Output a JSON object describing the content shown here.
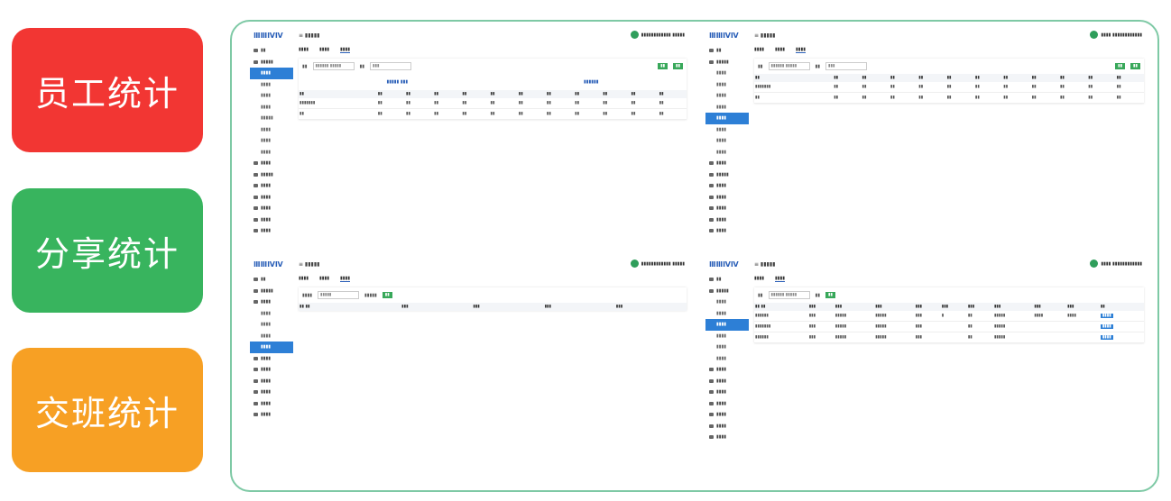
{
  "labels": [
    "员工统计",
    "分享统计",
    "交班统计"
  ],
  "colors": {
    "red": "#f23633",
    "green": "#38b45e",
    "orange": "#f7a024",
    "frame": "#7ec9a5",
    "accent": "#2d7fd6"
  },
  "screens": [
    {
      "logo": "ⅢⅢⅣⅣ",
      "crumb": "≡ ▮▮▮▮▮",
      "user": "▮▮▮▮▮▮▮▮▮▮▮▮ ▮▮▮▮▮",
      "sidebar": [
        {
          "label": "▮▮",
          "sub": false,
          "active": false
        },
        {
          "label": "▮▮▮▮▮",
          "sub": false,
          "active": false
        },
        {
          "label": "▮▮▮▮",
          "sub": true,
          "active": true
        },
        {
          "label": "▮▮▮▮",
          "sub": true,
          "active": false
        },
        {
          "label": "▮▮▮▮",
          "sub": true,
          "active": false
        },
        {
          "label": "▮▮▮▮",
          "sub": true,
          "active": false
        },
        {
          "label": "▮▮▮▮▮",
          "sub": true,
          "active": false
        },
        {
          "label": "▮▮▮▮",
          "sub": true,
          "active": false
        },
        {
          "label": "▮▮▮▮",
          "sub": true,
          "active": false
        },
        {
          "label": "▮▮▮▮",
          "sub": true,
          "active": false
        },
        {
          "label": "▮▮▮▮",
          "sub": false,
          "active": false
        },
        {
          "label": "▮▮▮▮▮",
          "sub": false,
          "active": false
        },
        {
          "label": "▮▮▮▮",
          "sub": false,
          "active": false
        },
        {
          "label": "▮▮▮▮",
          "sub": false,
          "active": false
        },
        {
          "label": "▮▮▮▮",
          "sub": false,
          "active": false
        },
        {
          "label": "▮▮▮▮",
          "sub": false,
          "active": false
        },
        {
          "label": "▮▮▮▮",
          "sub": false,
          "active": false
        }
      ],
      "tabs": [
        "▮▮▮▮",
        "▮▮▮▮",
        "▮▮▮▮"
      ],
      "toolbar": [
        "▮▮",
        "▮▮▮▮▮▮ ▮▮▮▮▮",
        "▮▮",
        "▮▮▮",
        "▮▮",
        "▮▮"
      ],
      "summary": [
        "▮▮▮▮▮ ▮▮▮",
        "▮▮▮▮▮▮"
      ],
      "table_head": [
        "▮▮",
        "▮▮",
        "▮▮",
        "▮▮",
        "▮▮",
        "▮▮",
        "▮▮",
        "▮▮",
        "▮▮",
        "▮▮",
        "▮▮",
        "▮▮"
      ],
      "table_rows": [
        [
          "▮▮▮▮▮▮▮",
          "▮▮",
          "▮▮",
          "▮▮",
          "▮▮",
          "▮▮",
          "▮▮",
          "▮▮",
          "▮▮",
          "▮▮",
          "▮▮",
          "▮▮"
        ],
        [
          "▮▮",
          "▮▮",
          "▮▮",
          "▮▮",
          "▮▮",
          "▮▮",
          "▮▮",
          "▮▮",
          "▮▮",
          "▮▮",
          "▮▮",
          "▮▮"
        ]
      ]
    },
    {
      "logo": "ⅢⅢⅣⅣ",
      "crumb": "≡ ▮▮▮▮▮",
      "user": "▮▮▮▮ ▮▮▮▮▮▮▮▮▮▮▮▮",
      "sidebar": [
        {
          "label": "▮▮",
          "sub": false,
          "active": false
        },
        {
          "label": "▮▮▮▮▮",
          "sub": false,
          "active": false
        },
        {
          "label": "▮▮▮▮",
          "sub": true,
          "active": false
        },
        {
          "label": "▮▮▮▮",
          "sub": true,
          "active": false
        },
        {
          "label": "▮▮▮▮",
          "sub": true,
          "active": false
        },
        {
          "label": "▮▮▮▮",
          "sub": true,
          "active": false
        },
        {
          "label": "▮▮▮▮",
          "sub": true,
          "active": true
        },
        {
          "label": "▮▮▮▮",
          "sub": true,
          "active": false
        },
        {
          "label": "▮▮▮▮",
          "sub": true,
          "active": false
        },
        {
          "label": "▮▮▮▮",
          "sub": true,
          "active": false
        },
        {
          "label": "▮▮▮▮",
          "sub": false,
          "active": false
        },
        {
          "label": "▮▮▮▮▮",
          "sub": false,
          "active": false
        },
        {
          "label": "▮▮▮▮",
          "sub": false,
          "active": false
        },
        {
          "label": "▮▮▮▮",
          "sub": false,
          "active": false
        },
        {
          "label": "▮▮▮▮",
          "sub": false,
          "active": false
        },
        {
          "label": "▮▮▮▮",
          "sub": false,
          "active": false
        },
        {
          "label": "▮▮▮▮",
          "sub": false,
          "active": false
        }
      ],
      "tabs": [
        "▮▮▮▮",
        "▮▮▮▮",
        "▮▮▮▮"
      ],
      "toolbar": [
        "▮▮",
        "▮▮▮▮▮▮ ▮▮▮▮▮",
        "▮▮",
        "▮▮▮",
        "▮▮",
        "▮▮"
      ],
      "summary": [],
      "table_head": [
        "▮▮",
        "▮▮",
        "▮▮",
        "▮▮",
        "▮▮",
        "▮▮",
        "▮▮",
        "▮▮",
        "▮▮",
        "▮▮",
        "▮▮",
        "▮▮"
      ],
      "table_rows": [
        [
          "▮▮▮▮▮▮▮",
          "▮▮",
          "▮▮",
          "▮▮",
          "▮▮",
          "▮▮",
          "▮▮",
          "▮▮",
          "▮▮",
          "▮▮",
          "▮▮",
          "▮▮"
        ],
        [
          "▮▮",
          "▮▮",
          "▮▮",
          "▮▮",
          "▮▮",
          "▮▮",
          "▮▮",
          "▮▮",
          "▮▮",
          "▮▮",
          "▮▮",
          "▮▮"
        ]
      ]
    },
    {
      "logo": "ⅢⅢⅣⅣ",
      "crumb": "≡ ▮▮▮▮▮",
      "user": "▮▮▮▮▮▮▮▮▮▮▮▮ ▮▮▮▮▮",
      "sidebar": [
        {
          "label": "▮▮",
          "sub": false,
          "active": false
        },
        {
          "label": "▮▮▮▮▮",
          "sub": false,
          "active": false
        },
        {
          "label": "▮▮▮▮",
          "sub": false,
          "active": false
        },
        {
          "label": "▮▮▮▮",
          "sub": true,
          "active": false
        },
        {
          "label": "▮▮▮▮",
          "sub": true,
          "active": false
        },
        {
          "label": "▮▮▮▮",
          "sub": true,
          "active": false
        },
        {
          "label": "▮▮▮▮",
          "sub": true,
          "active": true
        },
        {
          "label": "▮▮▮▮",
          "sub": false,
          "active": false
        },
        {
          "label": "▮▮▮▮",
          "sub": false,
          "active": false
        },
        {
          "label": "▮▮▮▮",
          "sub": false,
          "active": false
        },
        {
          "label": "▮▮▮▮",
          "sub": false,
          "active": false
        },
        {
          "label": "▮▮▮▮",
          "sub": false,
          "active": false
        },
        {
          "label": "▮▮▮▮",
          "sub": false,
          "active": false
        }
      ],
      "tabs": [
        "▮▮▮▮",
        "▮▮▮▮",
        "▮▮▮▮"
      ],
      "toolbar": [
        "▮▮▮▮",
        "▮▮▮▮▮",
        "▮▮▮▮▮",
        "▮▮"
      ],
      "summary": [],
      "table_head": [
        "▮▮ ▮▮",
        "▮▮▮",
        "▮▮▮",
        "▮▮▮",
        "▮▮▮"
      ],
      "table_rows": []
    },
    {
      "logo": "ⅢⅢⅣⅣ",
      "crumb": "≡ ▮▮▮▮▮",
      "user": "▮▮▮▮ ▮▮▮▮▮▮▮▮▮▮▮▮",
      "sidebar": [
        {
          "label": "▮▮",
          "sub": false,
          "active": false
        },
        {
          "label": "▮▮▮▮▮",
          "sub": false,
          "active": false
        },
        {
          "label": "▮▮▮▮",
          "sub": true,
          "active": false
        },
        {
          "label": "▮▮▮▮",
          "sub": true,
          "active": false
        },
        {
          "label": "▮▮▮▮",
          "sub": true,
          "active": true
        },
        {
          "label": "▮▮▮▮",
          "sub": true,
          "active": false
        },
        {
          "label": "▮▮▮▮",
          "sub": true,
          "active": false
        },
        {
          "label": "▮▮▮▮",
          "sub": true,
          "active": false
        },
        {
          "label": "▮▮▮▮",
          "sub": false,
          "active": false
        },
        {
          "label": "▮▮▮▮",
          "sub": false,
          "active": false
        },
        {
          "label": "▮▮▮▮",
          "sub": false,
          "active": false
        },
        {
          "label": "▮▮▮▮",
          "sub": false,
          "active": false
        },
        {
          "label": "▮▮▮▮",
          "sub": false,
          "active": false
        },
        {
          "label": "▮▮▮▮",
          "sub": false,
          "active": false
        },
        {
          "label": "▮▮▮▮",
          "sub": false,
          "active": false
        }
      ],
      "tabs": [
        "▮▮▮▮",
        "▮▮▮▮"
      ],
      "toolbar": [
        "▮▮",
        "▮▮▮▮▮▮ ▮▮▮▮▮",
        "▮▮",
        "▮▮"
      ],
      "summary": [],
      "table_head": [
        "▮▮ ▮▮",
        "▮▮▮",
        "▮▮▮",
        "▮▮▮",
        "▮▮▮",
        "▮▮▮",
        "▮▮▮",
        "▮▮▮",
        "▮▮▮",
        "▮▮▮",
        "▮▮"
      ],
      "table_rows": [
        [
          "▮▮▮▮▮▮",
          "▮▮▮",
          "▮▮▮▮▮",
          "▮▮▮▮▮",
          "▮▮▮",
          "▮",
          "▮▮",
          "▮▮▮▮▮",
          "▮▮▮▮",
          "▮▮▮▮",
          "▮▮▮▮"
        ],
        [
          "▮▮▮▮▮▮▮",
          "▮▮▮",
          "▮▮▮▮▮",
          "▮▮▮▮▮",
          "▮▮▮",
          "",
          "▮▮",
          "▮▮▮▮▮",
          "",
          "",
          "▮▮▮▮"
        ],
        [
          "▮▮▮▮▮▮",
          "▮▮▮",
          "▮▮▮▮▮",
          "▮▮▮▮▮",
          "▮▮▮",
          "",
          "▮▮",
          "▮▮▮▮▮",
          "",
          "",
          "▮▮▮▮"
        ]
      ]
    }
  ]
}
